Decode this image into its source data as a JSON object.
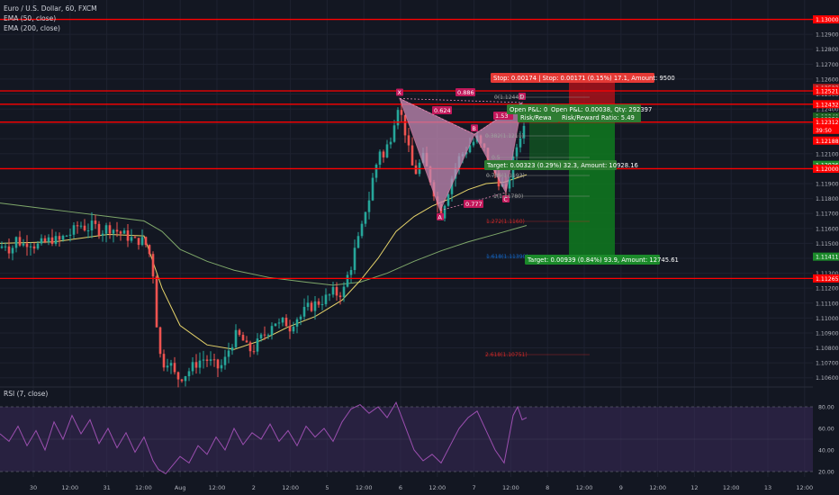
{
  "header": {
    "symbol": "Euro / U.S. Dollar, 60, FXCM",
    "ema50": "EMA (50, close)",
    "ema200": "EMA (200, close)"
  },
  "rsi_header": "RSI (7, close)",
  "colors": {
    "background": "#131722",
    "up": "#26a69a",
    "down": "#ef5350",
    "level_line": "#ff0000",
    "ema50": "#e6d36a",
    "ema200": "#7fa86a",
    "pattern_fill": "#c48ab5",
    "rsi": "#9c4fb0",
    "rsi_band": "#3a2a5a",
    "loss_zone": "#b3111a",
    "profit_zone": "#0f7a1f"
  },
  "price_axis": {
    "ticks": [
      "1.13000",
      "1.12900",
      "1.12800",
      "1.12700",
      "1.12600",
      "1.12500",
      "1.12400",
      "1.12300",
      "1.12200",
      "1.12100",
      "1.12000",
      "1.11900",
      "1.11800",
      "1.11700",
      "1.11600",
      "1.11500",
      "1.11400",
      "1.11300",
      "1.11200",
      "1.11100",
      "1.11000",
      "1.10900",
      "1.10800",
      "1.10700",
      "1.10600"
    ],
    "badges": [
      {
        "text": "1.13000",
        "color": "#ff0000"
      },
      {
        "text": "1.12523",
        "color": "#b71c1c"
      },
      {
        "text": "1.12521",
        "color": "#ff0000"
      },
      {
        "text": "1.12432",
        "color": "#ff0000"
      },
      {
        "text": "1.12349",
        "color": "#1b5e20"
      },
      {
        "text": "1.12350",
        "color": "#1b5e20"
      },
      {
        "text": "1.12312",
        "color": "#ff0000"
      },
      {
        "text": "39:50",
        "color": "#ff0000"
      },
      {
        "text": "1.12188",
        "color": "#ff0000"
      },
      {
        "text": "1.12026",
        "color": "#1b8a2a"
      },
      {
        "text": "1.12000",
        "color": "#ff0000"
      },
      {
        "text": "1.11411",
        "color": "#1b8a2a"
      },
      {
        "text": "1.11265",
        "color": "#ff0000"
      }
    ]
  },
  "rsi_axis": {
    "ticks": [
      "80.00",
      "60.00",
      "40.00",
      "20.00"
    ]
  },
  "time_axis": {
    "ticks": [
      "30",
      "12:00",
      "31",
      "12:00",
      "Aug",
      "12:00",
      "2",
      "12:00",
      "5",
      "12:00",
      "6",
      "12:00",
      "7",
      "12:00",
      "8",
      "12:00",
      "9",
      "12:00",
      "12",
      "12:00",
      "13",
      "12:00"
    ]
  },
  "pattern": {
    "points": [
      "X",
      "A",
      "B",
      "C",
      "D"
    ],
    "ratios": [
      "0.886",
      "0.624",
      "1.53",
      "0.777"
    ]
  },
  "fib_labels": [
    "0(1.12443)",
    "0.382(1.1211)",
    "0.5",
    "0.786(1.1193)",
    "1(1.11780)",
    "1.272(1.1160)",
    "1.618(1.11390)",
    "2.618(1.10751)"
  ],
  "trade": {
    "stop_label": "Stop: 0.00174 | Stop: 0.00171 (0.15%) 17.1, Amount: 9500",
    "open_pl_1": "Open P&L: 0.00",
    "open_pl_2": "Open P&L: 0.00038, Qty: 292397",
    "rr_1": "Risk/Rewa",
    "rr_2": "Risk/Reward Ratio: 5.49",
    "target_1": "Target: 0.00323 (0.29%) 32.3, Amount: 10928.16",
    "target_2": "Target: 0.00939 (0.84%) 93.9, Amount: 12745.61"
  },
  "chart_data": {
    "type": "candlestick",
    "title": "Euro / U.S. Dollar, 60, FXCM",
    "ylim": [
      1.1055,
      1.1313
    ],
    "rsi_ylim": [
      15,
      90
    ],
    "horizontal_levels": [
      1.13,
      1.12521,
      1.12432,
      1.12312,
      1.12,
      1.11265
    ],
    "x_labels": [
      "30",
      "12:00",
      "31",
      "12:00",
      "Aug",
      "12:00",
      "2",
      "12:00",
      "5",
      "12:00",
      "6",
      "12:00",
      "7",
      "12:00",
      "8",
      "12:00",
      "9",
      "12:00",
      "12",
      "12:00",
      "13",
      "12:00"
    ],
    "price_path": [
      [
        0,
        1.1147
      ],
      [
        6,
        1.115
      ],
      [
        12,
        1.1145
      ],
      [
        18,
        1.1153
      ],
      [
        25,
        1.1149
      ],
      [
        32,
        1.1152
      ],
      [
        40,
        1.1148
      ],
      [
        48,
        1.115
      ],
      [
        58,
        1.1153
      ],
      [
        65,
        1.1151
      ],
      [
        72,
        1.1155
      ],
      [
        80,
        1.1157
      ],
      [
        88,
        1.1163
      ],
      [
        96,
        1.116
      ],
      [
        104,
        1.1162
      ],
      [
        112,
        1.1158
      ],
      [
        120,
        1.1161
      ],
      [
        128,
        1.1159
      ],
      [
        136,
        1.1156
      ],
      [
        144,
        1.1154
      ],
      [
        150,
        1.1151
      ],
      [
        156,
        1.1153
      ],
      [
        162,
        1.1149
      ],
      [
        168,
        1.114
      ],
      [
        172,
        1.112
      ],
      [
        175,
        1.1085
      ],
      [
        178,
        1.1075
      ],
      [
        182,
        1.107
      ],
      [
        186,
        1.1072
      ],
      [
        190,
        1.1068
      ],
      [
        194,
        1.1062
      ],
      [
        198,
        1.106
      ],
      [
        205,
        1.1062
      ],
      [
        212,
        1.1066
      ],
      [
        220,
        1.1071
      ],
      [
        228,
        1.1073
      ],
      [
        236,
        1.1069
      ],
      [
        244,
        1.1066
      ],
      [
        250,
        1.1072
      ],
      [
        256,
        1.1082
      ],
      [
        262,
        1.1088
      ],
      [
        268,
        1.1087
      ],
      [
        274,
        1.108
      ],
      [
        280,
        1.1078
      ],
      [
        286,
        1.1083
      ],
      [
        292,
        1.1088
      ],
      [
        298,
        1.1092
      ],
      [
        304,
        1.1099
      ],
      [
        310,
        1.1095
      ],
      [
        316,
        1.1098
      ],
      [
        322,
        1.1094
      ],
      [
        328,
        1.11
      ],
      [
        334,
        1.1101
      ],
      [
        340,
        1.1106
      ],
      [
        346,
        1.1108
      ],
      [
        352,
        1.111
      ],
      [
        358,
        1.1112
      ],
      [
        364,
        1.1114
      ],
      [
        370,
        1.1117
      ],
      [
        376,
        1.1116
      ],
      [
        382,
        1.1119
      ],
      [
        386,
        1.1128
      ],
      [
        390,
        1.1135
      ],
      [
        394,
        1.1145
      ],
      [
        398,
        1.1152
      ],
      [
        402,
        1.116
      ],
      [
        406,
        1.1173
      ],
      [
        410,
        1.118
      ],
      [
        414,
        1.1193
      ],
      [
        418,
        1.1203
      ],
      [
        422,
        1.1213
      ],
      [
        426,
        1.1207
      ],
      [
        430,
        1.1215
      ],
      [
        434,
        1.1222
      ],
      [
        438,
        1.1233
      ],
      [
        441,
        1.1244
      ],
      [
        444,
        1.124
      ],
      [
        447,
        1.1232
      ],
      [
        450,
        1.1225
      ],
      [
        453,
        1.1215
      ],
      [
        456,
        1.1205
      ],
      [
        459,
        1.12
      ],
      [
        462,
        1.1198
      ],
      [
        466,
        1.1203
      ],
      [
        470,
        1.1207
      ],
      [
        474,
        1.12
      ],
      [
        478,
        1.1193
      ],
      [
        482,
        1.1185
      ],
      [
        486,
        1.1176
      ],
      [
        490,
        1.117
      ],
      [
        494,
        1.1178
      ],
      [
        498,
        1.1186
      ],
      [
        502,
        1.1194
      ],
      [
        506,
        1.1201
      ],
      [
        510,
        1.1207
      ],
      [
        514,
        1.121
      ],
      [
        518,
        1.1213
      ],
      [
        522,
        1.1216
      ],
      [
        526,
        1.1218
      ],
      [
        530,
        1.122
      ],
      [
        534,
        1.1215
      ],
      [
        538,
        1.1212
      ],
      [
        542,
        1.1205
      ],
      [
        546,
        1.12
      ],
      [
        550,
        1.1197
      ],
      [
        554,
        1.1192
      ],
      [
        558,
        1.1188
      ],
      [
        562,
        1.1183
      ],
      [
        566,
        1.1195
      ],
      [
        570,
        1.1205
      ],
      [
        574,
        1.1215
      ],
      [
        578,
        1.1223
      ],
      [
        582,
        1.1228
      ],
      [
        585,
        1.1225
      ]
    ],
    "ema50_path": [
      [
        0,
        1.115
      ],
      [
        60,
        1.1151
      ],
      [
        120,
        1.1156
      ],
      [
        160,
        1.1155
      ],
      [
        180,
        1.112
      ],
      [
        200,
        1.1095
      ],
      [
        230,
        1.1082
      ],
      [
        260,
        1.1079
      ],
      [
        290,
        1.1085
      ],
      [
        320,
        1.1094
      ],
      [
        350,
        1.1101
      ],
      [
        380,
        1.1112
      ],
      [
        400,
        1.1125
      ],
      [
        420,
        1.114
      ],
      [
        440,
        1.1158
      ],
      [
        460,
        1.1168
      ],
      [
        480,
        1.1175
      ],
      [
        500,
        1.118
      ],
      [
        520,
        1.1186
      ],
      [
        540,
        1.119
      ],
      [
        560,
        1.1191
      ],
      [
        585,
        1.1196
      ]
    ],
    "ema200_path": [
      [
        0,
        1.1177
      ],
      [
        40,
        1.1174
      ],
      [
        80,
        1.1171
      ],
      [
        120,
        1.1168
      ],
      [
        160,
        1.1165
      ],
      [
        180,
        1.1158
      ],
      [
        200,
        1.1146
      ],
      [
        230,
        1.1138
      ],
      [
        260,
        1.1132
      ],
      [
        300,
        1.1127
      ],
      [
        340,
        1.1124
      ],
      [
        370,
        1.1122
      ],
      [
        400,
        1.1124
      ],
      [
        430,
        1.113
      ],
      [
        460,
        1.1138
      ],
      [
        490,
        1.1145
      ],
      [
        520,
        1.1151
      ],
      [
        550,
        1.1156
      ],
      [
        585,
        1.1162
      ]
    ],
    "harmonic_pattern": {
      "X": [
        444,
        1.1247
      ],
      "A": [
        489,
        1.1172
      ],
      "B": [
        527,
        1.1223
      ],
      "C": [
        562,
        1.1184
      ],
      "D": [
        580,
        1.12443
      ]
    },
    "rsi_path": [
      [
        0,
        55
      ],
      [
        10,
        48
      ],
      [
        20,
        62
      ],
      [
        30,
        44
      ],
      [
        40,
        58
      ],
      [
        50,
        40
      ],
      [
        60,
        66
      ],
      [
        70,
        50
      ],
      [
        80,
        72
      ],
      [
        90,
        55
      ],
      [
        100,
        68
      ],
      [
        110,
        46
      ],
      [
        120,
        60
      ],
      [
        130,
        42
      ],
      [
        140,
        56
      ],
      [
        150,
        38
      ],
      [
        160,
        52
      ],
      [
        170,
        30
      ],
      [
        176,
        22
      ],
      [
        184,
        18
      ],
      [
        192,
        26
      ],
      [
        200,
        34
      ],
      [
        210,
        28
      ],
      [
        220,
        44
      ],
      [
        230,
        36
      ],
      [
        240,
        52
      ],
      [
        250,
        40
      ],
      [
        260,
        60
      ],
      [
        270,
        45
      ],
      [
        280,
        56
      ],
      [
        290,
        50
      ],
      [
        300,
        64
      ],
      [
        310,
        48
      ],
      [
        320,
        58
      ],
      [
        330,
        44
      ],
      [
        340,
        62
      ],
      [
        350,
        52
      ],
      [
        360,
        60
      ],
      [
        370,
        48
      ],
      [
        380,
        66
      ],
      [
        390,
        78
      ],
      [
        400,
        82
      ],
      [
        410,
        74
      ],
      [
        420,
        80
      ],
      [
        430,
        70
      ],
      [
        440,
        84
      ],
      [
        450,
        62
      ],
      [
        460,
        40
      ],
      [
        470,
        30
      ],
      [
        480,
        36
      ],
      [
        490,
        28
      ],
      [
        500,
        44
      ],
      [
        510,
        60
      ],
      [
        520,
        70
      ],
      [
        530,
        76
      ],
      [
        540,
        58
      ],
      [
        550,
        40
      ],
      [
        560,
        28
      ],
      [
        570,
        72
      ],
      [
        575,
        80
      ],
      [
        580,
        68
      ],
      [
        585,
        70
      ]
    ]
  }
}
